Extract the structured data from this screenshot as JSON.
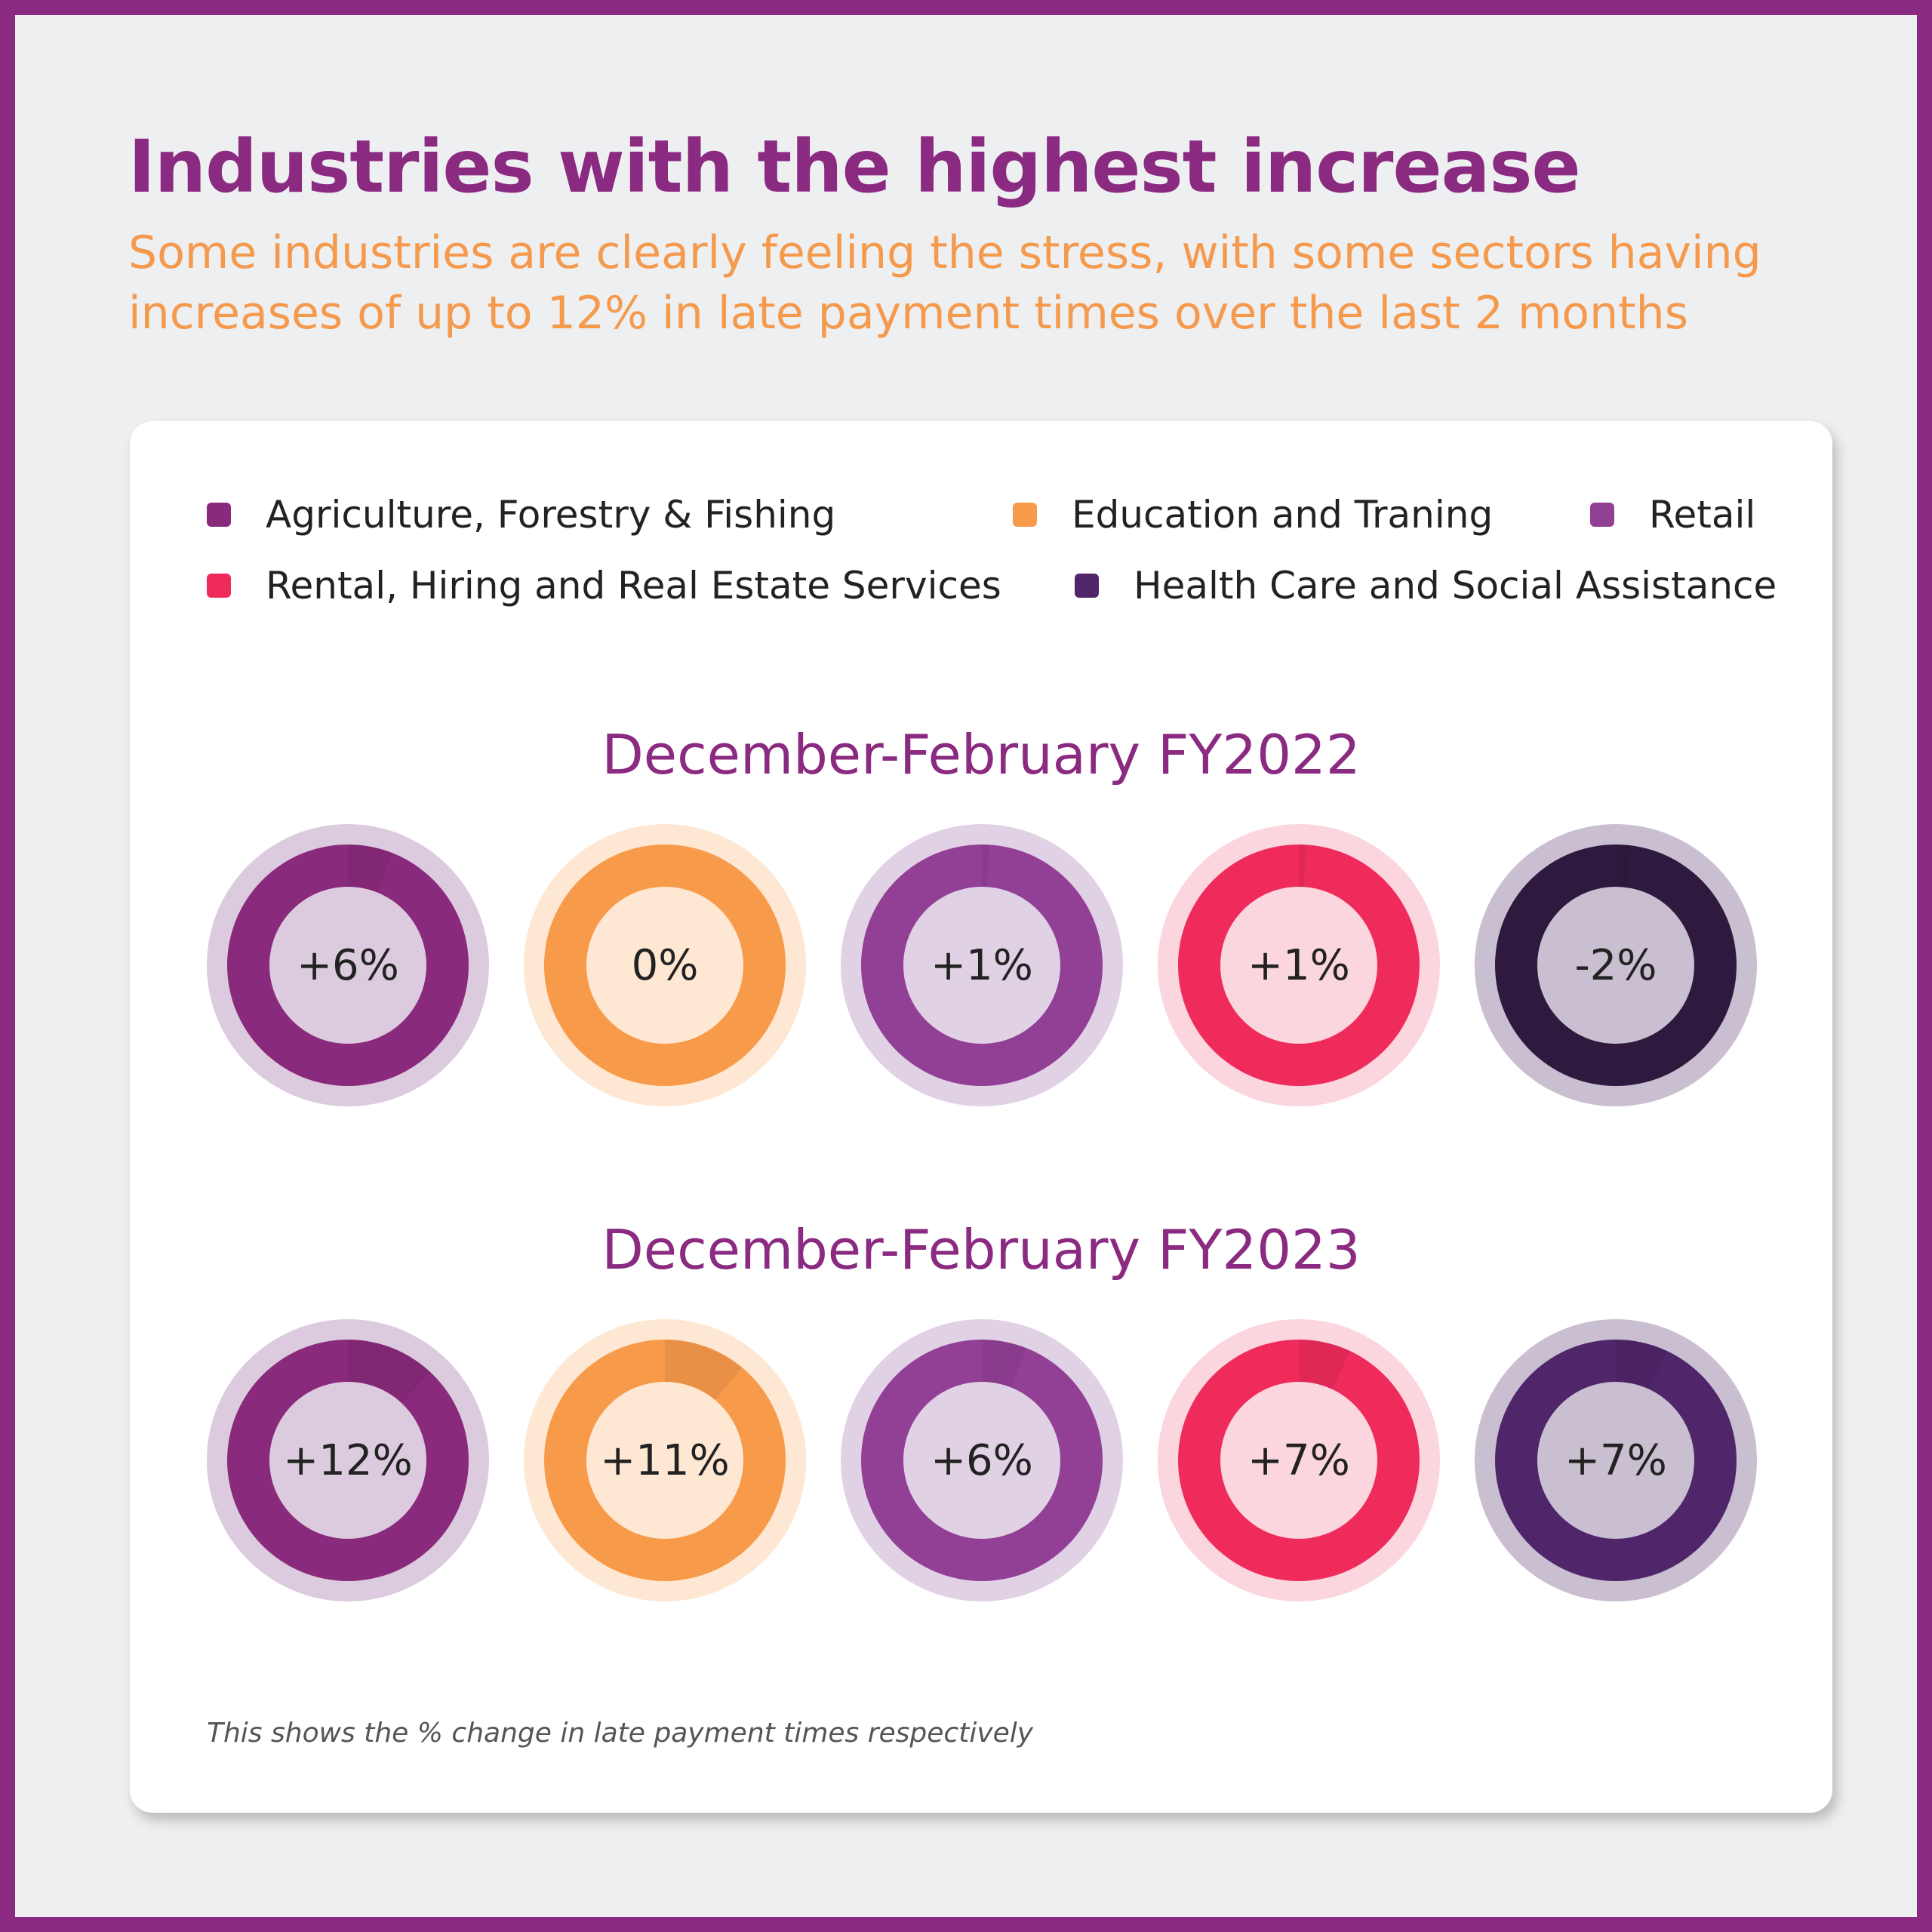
{
  "title": "Industries with the highest increase",
  "subtitle": "Some industries are clearly feeling the stress, with some sectors having increases of up to 12% in late payment times over the last 2 months",
  "footnote": "This shows the % change in late payment times respectively",
  "colors": {
    "frame": "#8a2a80",
    "title": "#8a2a80",
    "subtitle": "#f59a4d"
  },
  "chart_data": {
    "type": "donut",
    "legend": [
      {
        "name": "Agriculture, Forestry & Fishing",
        "color": "#8a2a7c"
      },
      {
        "name": "Education and Traning",
        "color": "#f79a4a"
      },
      {
        "name": "Retail",
        "color": "#923f96"
      },
      {
        "name": "Rental, Hiring and Real Estate Services",
        "color": "#ef2b5c"
      },
      {
        "name": "Health Care and Social Assistance",
        "color": "#50266a"
      }
    ],
    "groups": [
      {
        "title": "December-February FY2022",
        "values": [
          {
            "label": "+6%",
            "value": 6,
            "ring": "#8a2a7c",
            "outer": "#dccbde",
            "inner": "#dccbde"
          },
          {
            "label": "0%",
            "value": 0,
            "ring": "#f79a4a",
            "outer": "#fee7d3",
            "inner": "#fee7d3"
          },
          {
            "label": "+1%",
            "value": 1,
            "ring": "#923f96",
            "outer": "#e1d1e5",
            "inner": "#e1d1e5"
          },
          {
            "label": "+1%",
            "value": 1,
            "ring": "#ef2b5c",
            "outer": "#fbd6de",
            "inner": "#fbd6de"
          },
          {
            "label": "-2%",
            "value": -2,
            "ring": "#2e1a3f",
            "outer": "#c9bfd1",
            "inner": "#c9bfd1"
          }
        ]
      },
      {
        "title": "December-February FY2023",
        "values": [
          {
            "label": "+12%",
            "value": 12,
            "ring": "#8a2a7c",
            "outer": "#dccbde",
            "inner": "#dccbde"
          },
          {
            "label": "+11%",
            "value": 11,
            "ring": "#f79a4a",
            "outer": "#fee7d3",
            "inner": "#fee7d3"
          },
          {
            "label": "+6%",
            "value": 6,
            "ring": "#923f96",
            "outer": "#e1d1e5",
            "inner": "#e1d1e5"
          },
          {
            "label": "+7%",
            "value": 7,
            "ring": "#ef2b5c",
            "outer": "#fbd6de",
            "inner": "#fbd6de"
          },
          {
            "label": "+7%",
            "value": 7,
            "ring": "#50266a",
            "outer": "#c9bfd1",
            "inner": "#c9bfd1"
          }
        ]
      }
    ]
  }
}
